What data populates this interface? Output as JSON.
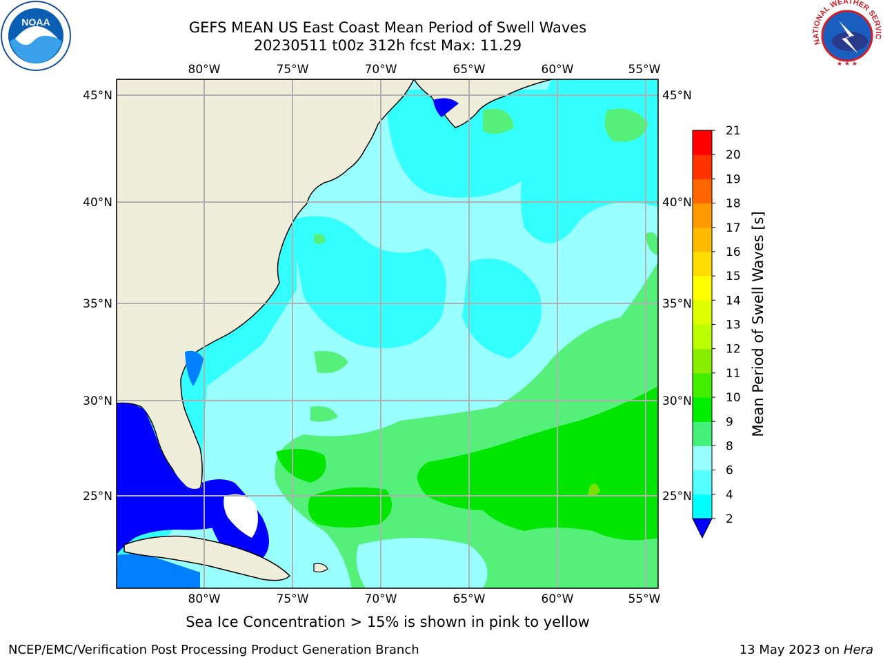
{
  "header": {
    "title_line1": "GEFS MEAN US East Coast Mean Period of Swell Waves",
    "title_line2": "20230511 t00z 312h fcst   Max: 11.29"
  },
  "logos": {
    "left": {
      "name": "noaa-logo",
      "text": "NOAA"
    },
    "right": {
      "name": "nws-logo",
      "text": "NATIONAL WEATHER SERVICE"
    }
  },
  "map": {
    "lon_labels": [
      "80°W",
      "75°W",
      "70°W",
      "65°W",
      "60°W",
      "55°W"
    ],
    "lat_labels": [
      "45°N",
      "40°N",
      "35°N",
      "30°N",
      "25°N"
    ],
    "colors": {
      "land": "#efeedb",
      "ocean_cyan": "#33ffff",
      "ocean_light": "#99ffff",
      "ocean_green_light": "#55f07a",
      "ocean_green": "#00e600",
      "ocean_blue": "#0000ff",
      "ocean_midblue": "#0080ff",
      "ice_white": "#ffffff",
      "grid": "#b0b0b0"
    }
  },
  "colorbar": {
    "title": "Mean Period of Swell Waves [s]",
    "ticks": [
      "2",
      "4",
      "6",
      "8",
      "9",
      "10",
      "11",
      "12",
      "13",
      "14",
      "15",
      "16",
      "17",
      "18",
      "19",
      "20",
      "21"
    ],
    "colors": [
      "#0070ff",
      "#00ffff",
      "#55ffff",
      "#99ffff",
      "#44f07a",
      "#00ee00",
      "#44ee00",
      "#88ee00",
      "#bbff00",
      "#ddff00",
      "#ffff00",
      "#ffdd00",
      "#ffbb00",
      "#ff9900",
      "#ff6600",
      "#ff3300",
      "#ff0000"
    ]
  },
  "note": "Sea Ice Concentration > 15% is shown in pink to yellow",
  "footer": {
    "left": "NCEP/EMC/Verification Post Processing Product Generation Branch",
    "right_date": "13 May 2023 on ",
    "right_host": "Hera"
  }
}
